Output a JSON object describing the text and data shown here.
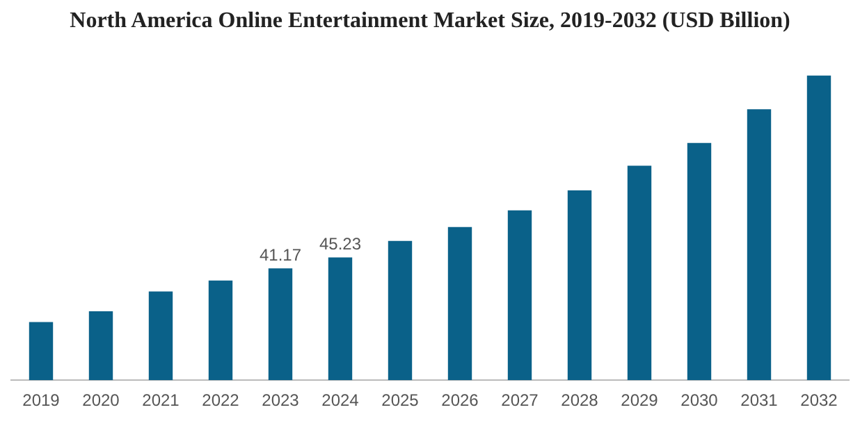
{
  "chart_data": {
    "type": "bar",
    "title": "North America Online Entertainment Market Size, 2019-2032 (USD Billion)",
    "categories": [
      "2019",
      "2020",
      "2021",
      "2022",
      "2023",
      "2024",
      "2025",
      "2026",
      "2027",
      "2028",
      "2029",
      "2030",
      "2031",
      "2032"
    ],
    "values": [
      21.4,
      25.4,
      32.7,
      36.7,
      41.17,
      45.23,
      51.3,
      56.4,
      62.6,
      69.9,
      79.0,
      87.4,
      99.8,
      112.2
    ],
    "value_labels": [
      null,
      null,
      null,
      null,
      "41.17",
      "45.23",
      null,
      null,
      null,
      null,
      null,
      null,
      null,
      null
    ],
    "color": "#0a6189",
    "grid": false,
    "legend": false
  }
}
